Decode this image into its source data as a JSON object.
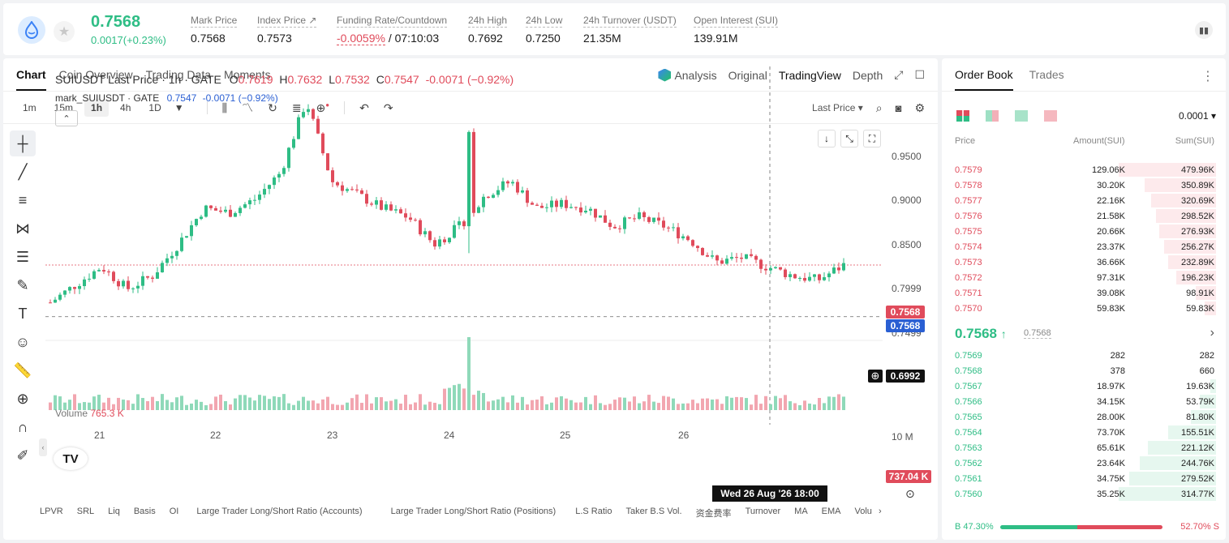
{
  "header": {
    "last_price": "0.7568",
    "change": "0.0017(+0.23%)",
    "stats": [
      {
        "label": "Mark Price",
        "value": "0.7568"
      },
      {
        "label": "Index Price ↗",
        "value": "0.7573"
      },
      {
        "label": "Funding Rate/Countdown",
        "value_neg": "-0.0059%",
        "value": "/ 07:10:03"
      },
      {
        "label": "24h High",
        "value": "0.7692"
      },
      {
        "label": "24h Low",
        "value": "0.7250"
      },
      {
        "label": "24h Turnover (USDT)",
        "value": "21.35M"
      },
      {
        "label": "Open Interest (SUI)",
        "value": "139.91M"
      }
    ]
  },
  "chart_tabs": [
    "Chart",
    "Coin Overview",
    "Trading Data",
    "Moments"
  ],
  "chart_views": {
    "analysis": "Analysis",
    "original": "Original",
    "tradingview": "TradingView",
    "depth": "Depth"
  },
  "timeframes": [
    "1m",
    "15m",
    "1h",
    "4h",
    "1D"
  ],
  "price_type": "Last Price ▾",
  "legend": {
    "symbol": "SUIUSDT Last Price · 1h · GATE",
    "o_label": "O",
    "o": "0.7619",
    "h_label": "H",
    "h": "0.7632",
    "l_label": "L",
    "l": "0.7532",
    "c_label": "C",
    "c": "0.7547",
    "chg": "-0.0071 (−0.92%)",
    "mark_name": "mark_SUIUSDT · GATE",
    "mark_val": "0.7547",
    "mark_chg": "-0.0071 (−0.92%)"
  },
  "volume_label": "Volume",
  "volume_value": "765.3 K",
  "chart_data": {
    "type": "candlestick",
    "symbol": "SUIUSDT",
    "interval": "1h",
    "y_ticks": [
      "0.9500",
      "0.9000",
      "0.8500",
      "0.7999",
      "0.7499"
    ],
    "ylim": [
      0.68,
      0.96
    ],
    "x_ticks": [
      "21",
      "22",
      "23",
      "24",
      "25",
      "26"
    ],
    "approx_close_path": [
      0.715,
      0.735,
      0.755,
      0.73,
      0.745,
      0.78,
      0.82,
      0.815,
      0.83,
      0.86,
      0.94,
      0.85,
      0.835,
      0.82,
      0.81,
      0.78,
      0.8,
      0.835,
      0.85,
      0.82,
      0.825,
      0.82,
      0.8,
      0.81,
      0.8,
      0.785,
      0.76,
      0.765,
      0.755,
      0.745,
      0.74,
      0.7568
    ],
    "last_price": "0.7568",
    "mark_price": "0.7568",
    "crosshair_price": "0.6992",
    "volume_tick": "10 M",
    "volume_last": "737.04 K"
  },
  "crosshair_time": "Wed 26 Aug '26   18:00",
  "bottom_tools": [
    "LPVR",
    "SRL",
    "Liq",
    "Basis",
    "OI",
    "Large Trader Long/Short Ratio (Accounts)",
    "Large Trader Long/Short Ratio (Positions)",
    "L.S Ratio",
    "Taker B.S Vol.",
    "资金费率",
    "Turnover",
    "MA",
    "EMA",
    "Volu"
  ],
  "order_book": {
    "tabs": [
      "Order Book",
      "Trades"
    ],
    "precision": "0.0001 ▾",
    "columns": [
      "Price",
      "Amount(SUI)",
      "Sum(SUI)"
    ],
    "asks": [
      {
        "p": "0.7579",
        "a": "129.06K",
        "s": "479.96K",
        "d": 1.0
      },
      {
        "p": "0.7578",
        "a": "30.20K",
        "s": "350.89K",
        "d": 0.73
      },
      {
        "p": "0.7577",
        "a": "22.16K",
        "s": "320.69K",
        "d": 0.67
      },
      {
        "p": "0.7576",
        "a": "21.58K",
        "s": "298.52K",
        "d": 0.62
      },
      {
        "p": "0.7575",
        "a": "20.66K",
        "s": "276.93K",
        "d": 0.58
      },
      {
        "p": "0.7574",
        "a": "23.37K",
        "s": "256.27K",
        "d": 0.53
      },
      {
        "p": "0.7573",
        "a": "36.66K",
        "s": "232.89K",
        "d": 0.49
      },
      {
        "p": "0.7572",
        "a": "97.31K",
        "s": "196.23K",
        "d": 0.41
      },
      {
        "p": "0.7571",
        "a": "39.08K",
        "s": "98.91K",
        "d": 0.21
      },
      {
        "p": "0.7570",
        "a": "59.83K",
        "s": "59.83K",
        "d": 0.12
      }
    ],
    "mid": "0.7568",
    "mid_arrow": "↑",
    "mid_mark": "0.7568",
    "bids": [
      {
        "p": "0.7569",
        "a": "282",
        "s": "282",
        "d": 0.0
      },
      {
        "p": "0.7568",
        "a": "378",
        "s": "660",
        "d": 0.0
      },
      {
        "p": "0.7567",
        "a": "18.97K",
        "s": "19.63K",
        "d": 0.06
      },
      {
        "p": "0.7566",
        "a": "34.15K",
        "s": "53.79K",
        "d": 0.17
      },
      {
        "p": "0.7565",
        "a": "28.00K",
        "s": "81.80K",
        "d": 0.26
      },
      {
        "p": "0.7564",
        "a": "73.70K",
        "s": "155.51K",
        "d": 0.49
      },
      {
        "p": "0.7563",
        "a": "65.61K",
        "s": "221.12K",
        "d": 0.7
      },
      {
        "p": "0.7562",
        "a": "23.64K",
        "s": "244.76K",
        "d": 0.78
      },
      {
        "p": "0.7561",
        "a": "34.75K",
        "s": "279.52K",
        "d": 0.89
      },
      {
        "p": "0.7560",
        "a": "35.25K",
        "s": "314.77K",
        "d": 1.0
      }
    ],
    "buy_label": "B 47.30%",
    "sell_label": "52.70% S",
    "buy_ratio": 0.473
  }
}
